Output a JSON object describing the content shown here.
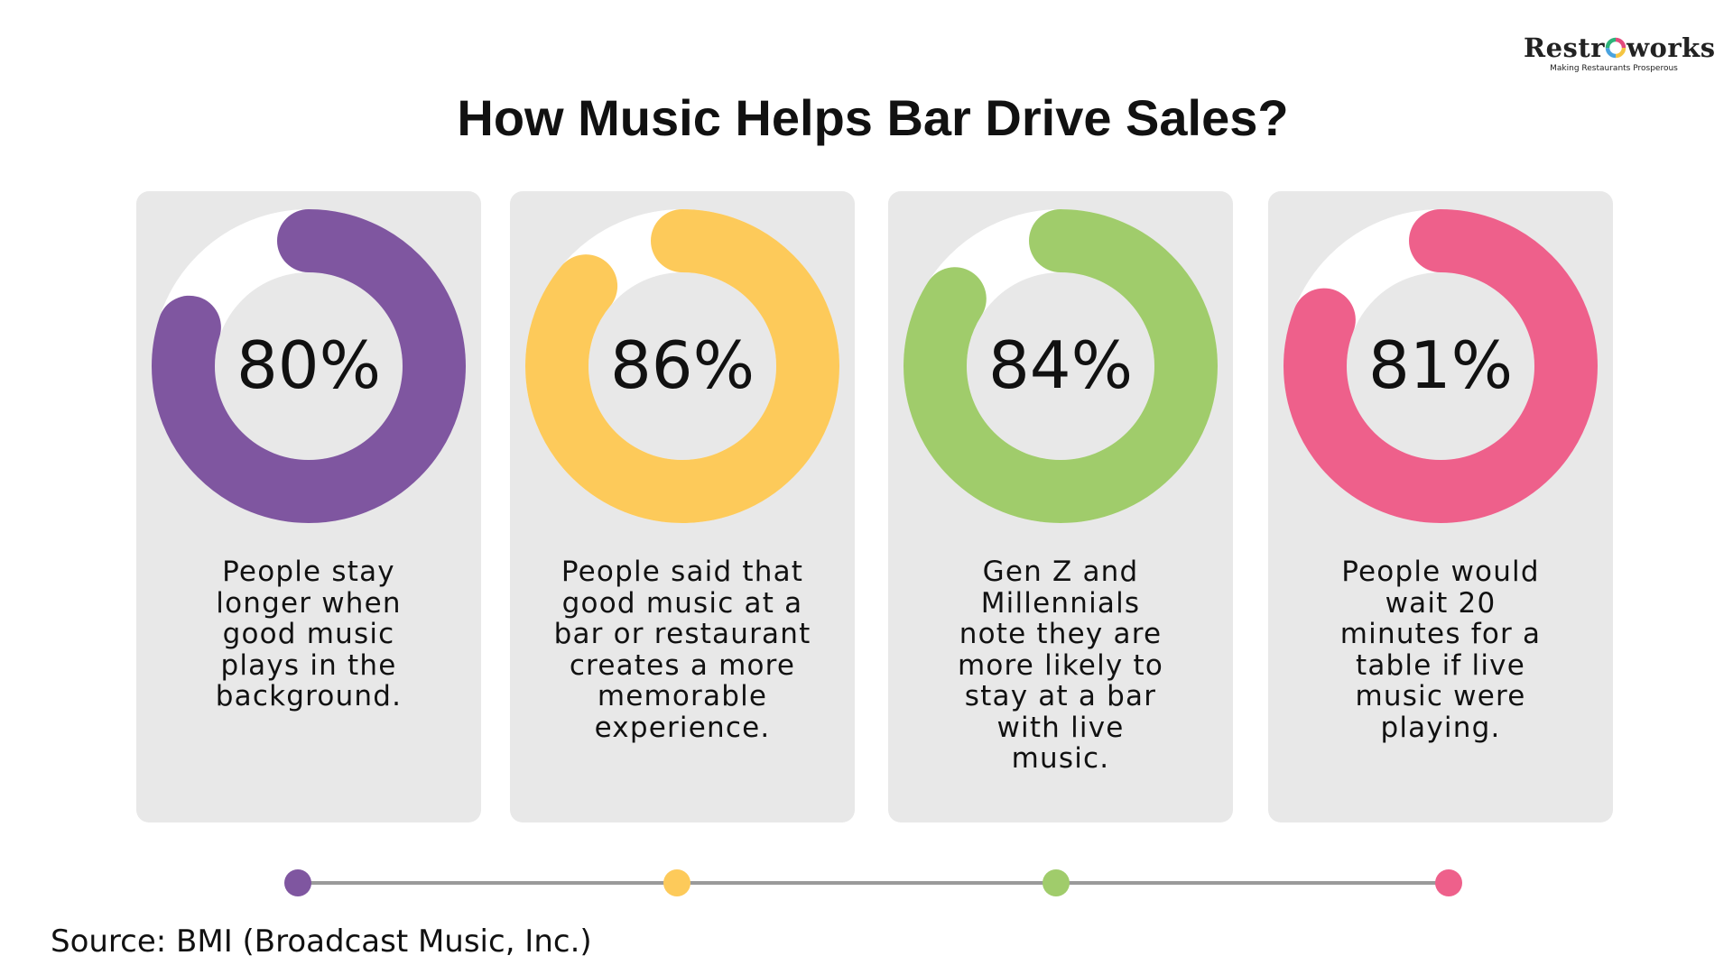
{
  "header": {
    "title": "How Music Helps Bar Drive Sales?",
    "logo": {
      "name_part1": "Restr",
      "name_part2": "works",
      "tagline": "Making Restaurants Prosperous"
    }
  },
  "chart_data": {
    "type": "pie",
    "title": "How Music Helps Bar Drive Sales?",
    "items": [
      {
        "value": 80,
        "label": "80%",
        "color": "#7f56a0",
        "description": [
          "People stay",
          "longer when",
          "good music",
          "plays in the",
          "background."
        ]
      },
      {
        "value": 86,
        "label": "86%",
        "color": "#fdca5a",
        "description": [
          "People said that",
          "good music at a",
          "bar or restaurant",
          "creates a more",
          "memorable",
          "experience."
        ]
      },
      {
        "value": 84,
        "label": "84%",
        "color": "#a0cc6b",
        "description": [
          "Gen Z and",
          "Millennials",
          "note they are",
          "more likely to",
          "stay at a bar",
          "with live",
          "music."
        ]
      },
      {
        "value": 81,
        "label": "81%",
        "color": "#ee608b",
        "description": [
          "People would",
          "wait 20",
          "minutes for a",
          "table if live",
          "music were",
          "playing."
        ]
      }
    ]
  },
  "footer": {
    "source": "Source: BMI (Broadcast Music, Inc.)"
  },
  "colors": {
    "card_bg": "#e8e8e8",
    "track": "#ffffff",
    "timeline_line": "#9a9a9a"
  }
}
